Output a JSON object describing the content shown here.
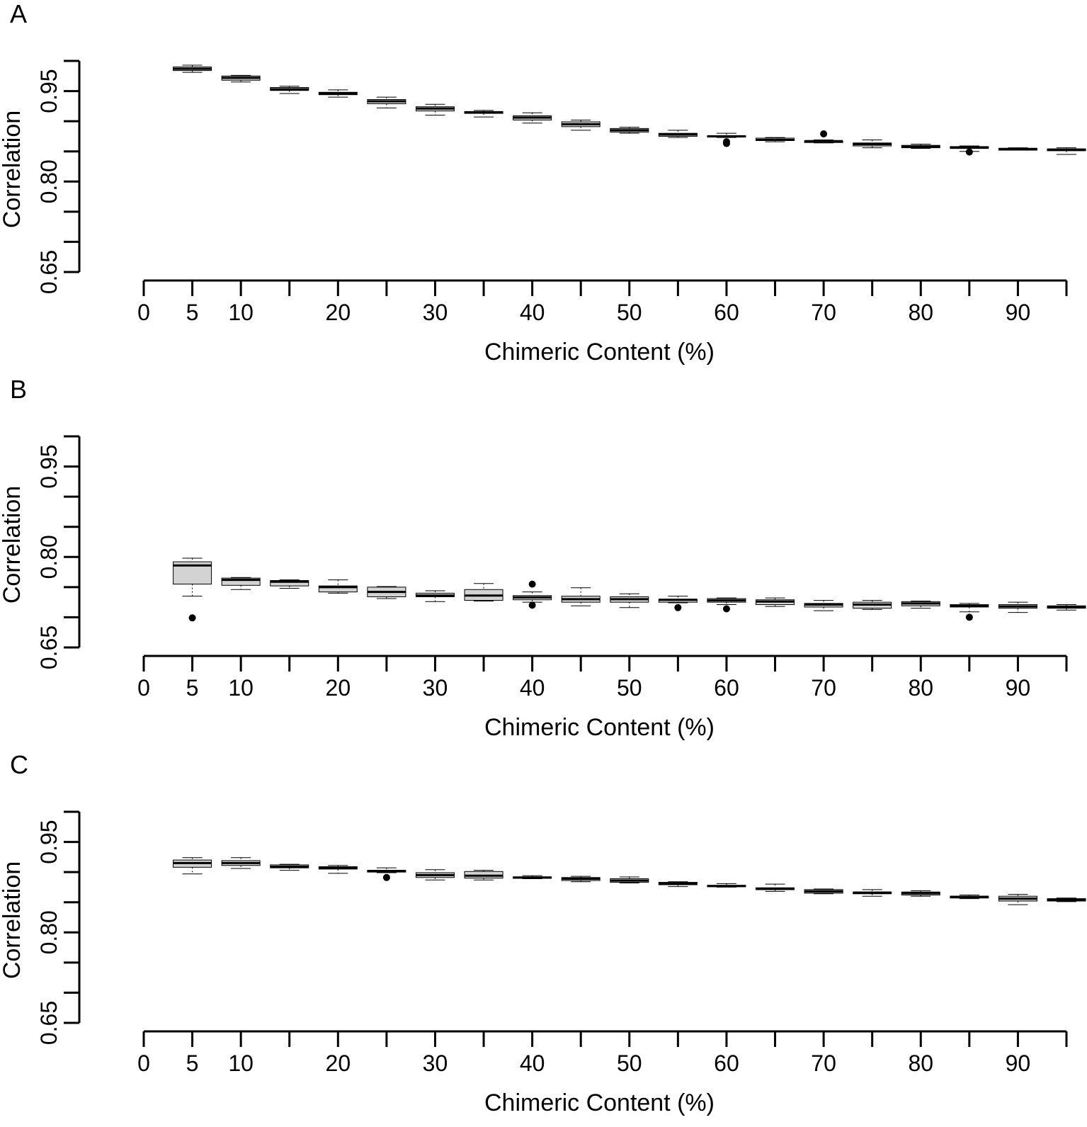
{
  "chart_data": [
    {
      "type": "box",
      "panel_label": "A",
      "xlabel": "Chimeric Content (%)",
      "ylabel": "Correlation",
      "ylim": [
        0.65,
        1.0
      ],
      "xlim": [
        0,
        95
      ],
      "yticks": [
        0.65,
        0.8,
        0.95
      ],
      "yticks_minor": [
        0.7,
        0.75,
        0.85,
        0.9,
        1.0
      ],
      "xticks_labeled": [
        0,
        5,
        10,
        20,
        30,
        40,
        50,
        60,
        70,
        80,
        90
      ],
      "xticks_all": [
        0,
        5,
        10,
        15,
        20,
        25,
        30,
        35,
        40,
        45,
        50,
        55,
        60,
        65,
        70,
        75,
        80,
        85,
        90,
        95
      ],
      "boxes": [
        {
          "x": 5,
          "min": 0.981,
          "q1": 0.984,
          "median": 0.987,
          "q3": 0.99,
          "max": 0.993,
          "outliers": []
        },
        {
          "x": 10,
          "min": 0.965,
          "q1": 0.968,
          "median": 0.972,
          "q3": 0.975,
          "max": 0.976,
          "outliers": []
        },
        {
          "x": 15,
          "min": 0.946,
          "q1": 0.951,
          "median": 0.953,
          "q3": 0.956,
          "max": 0.958,
          "outliers": []
        },
        {
          "x": 20,
          "min": 0.94,
          "q1": 0.944,
          "median": 0.946,
          "q3": 0.948,
          "max": 0.952,
          "outliers": []
        },
        {
          "x": 25,
          "min": 0.922,
          "q1": 0.929,
          "median": 0.933,
          "q3": 0.936,
          "max": 0.94,
          "outliers": []
        },
        {
          "x": 30,
          "min": 0.91,
          "q1": 0.917,
          "median": 0.921,
          "q3": 0.924,
          "max": 0.928,
          "outliers": []
        },
        {
          "x": 35,
          "min": 0.907,
          "q1": 0.913,
          "median": 0.915,
          "q3": 0.916,
          "max": 0.918,
          "outliers": []
        },
        {
          "x": 40,
          "min": 0.897,
          "q1": 0.902,
          "median": 0.906,
          "q3": 0.909,
          "max": 0.914,
          "outliers": []
        },
        {
          "x": 45,
          "min": 0.885,
          "q1": 0.891,
          "median": 0.895,
          "q3": 0.899,
          "max": 0.902,
          "outliers": []
        },
        {
          "x": 50,
          "min": 0.88,
          "q1": 0.882,
          "median": 0.885,
          "q3": 0.888,
          "max": 0.89,
          "outliers": []
        },
        {
          "x": 55,
          "min": 0.873,
          "q1": 0.875,
          "median": 0.878,
          "q3": 0.88,
          "max": 0.885,
          "outliers": []
        },
        {
          "x": 60,
          "min": 0.873,
          "q1": 0.874,
          "median": 0.875,
          "q3": 0.876,
          "max": 0.88,
          "outliers": [
            0.863,
            0.866
          ]
        },
        {
          "x": 65,
          "min": 0.866,
          "q1": 0.868,
          "median": 0.869,
          "q3": 0.872,
          "max": 0.873,
          "outliers": []
        },
        {
          "x": 70,
          "min": 0.864,
          "q1": 0.866,
          "median": 0.867,
          "q3": 0.867,
          "max": 0.869,
          "outliers": [
            0.879
          ]
        },
        {
          "x": 75,
          "min": 0.856,
          "q1": 0.859,
          "median": 0.862,
          "q3": 0.864,
          "max": 0.869,
          "outliers": []
        },
        {
          "x": 80,
          "min": 0.855,
          "q1": 0.856,
          "median": 0.858,
          "q3": 0.86,
          "max": 0.862,
          "outliers": []
        },
        {
          "x": 85,
          "min": 0.85,
          "q1": 0.855,
          "median": 0.856,
          "q3": 0.858,
          "max": 0.859,
          "outliers": [
            0.849
          ]
        },
        {
          "x": 90,
          "min": 0.852,
          "q1": 0.852,
          "median": 0.854,
          "q3": 0.855,
          "max": 0.856,
          "outliers": []
        },
        {
          "x": 95,
          "min": 0.845,
          "q1": 0.851,
          "median": 0.853,
          "q3": 0.854,
          "max": 0.856,
          "outliers": []
        }
      ]
    },
    {
      "type": "box",
      "panel_label": "B",
      "xlabel": "Chimeric Content (%)",
      "ylabel": "Correlation",
      "ylim": [
        0.65,
        1.0
      ],
      "xlim": [
        0,
        95
      ],
      "yticks": [
        0.65,
        0.8,
        0.95
      ],
      "yticks_minor": [
        0.7,
        0.75,
        0.85,
        0.9,
        1.0
      ],
      "xticks_labeled": [
        0,
        5,
        10,
        20,
        30,
        40,
        50,
        60,
        70,
        80,
        90
      ],
      "xticks_all": [
        0,
        5,
        10,
        15,
        20,
        25,
        30,
        35,
        40,
        45,
        50,
        55,
        60,
        65,
        70,
        75,
        80,
        85,
        90,
        95
      ],
      "boxes": [
        {
          "x": 5,
          "min": 0.735,
          "q1": 0.755,
          "median": 0.786,
          "q3": 0.792,
          "max": 0.798,
          "outliers": [
            0.699
          ]
        },
        {
          "x": 10,
          "min": 0.746,
          "q1": 0.753,
          "median": 0.762,
          "q3": 0.765,
          "max": 0.766,
          "outliers": []
        },
        {
          "x": 15,
          "min": 0.748,
          "q1": 0.752,
          "median": 0.759,
          "q3": 0.761,
          "max": 0.762,
          "outliers": []
        },
        {
          "x": 20,
          "min": 0.74,
          "q1": 0.742,
          "median": 0.75,
          "q3": 0.752,
          "max": 0.762,
          "outliers": []
        },
        {
          "x": 25,
          "min": 0.731,
          "q1": 0.734,
          "median": 0.742,
          "q3": 0.75,
          "max": 0.751,
          "outliers": []
        },
        {
          "x": 30,
          "min": 0.726,
          "q1": 0.734,
          "median": 0.736,
          "q3": 0.74,
          "max": 0.744,
          "outliers": []
        },
        {
          "x": 35,
          "min": 0.727,
          "q1": 0.728,
          "median": 0.736,
          "q3": 0.746,
          "max": 0.756,
          "outliers": []
        },
        {
          "x": 40,
          "min": 0.725,
          "q1": 0.729,
          "median": 0.733,
          "q3": 0.736,
          "max": 0.742,
          "outliers": [
            0.72,
            0.755
          ]
        },
        {
          "x": 45,
          "min": 0.719,
          "q1": 0.725,
          "median": 0.73,
          "q3": 0.735,
          "max": 0.749,
          "outliers": []
        },
        {
          "x": 50,
          "min": 0.716,
          "q1": 0.725,
          "median": 0.73,
          "q3": 0.734,
          "max": 0.739,
          "outliers": []
        },
        {
          "x": 55,
          "min": 0.724,
          "q1": 0.725,
          "median": 0.729,
          "q3": 0.73,
          "max": 0.735,
          "outliers": [
            0.716
          ]
        },
        {
          "x": 60,
          "min": 0.721,
          "q1": 0.725,
          "median": 0.728,
          "q3": 0.731,
          "max": 0.732,
          "outliers": [
            0.714
          ]
        },
        {
          "x": 65,
          "min": 0.718,
          "q1": 0.721,
          "median": 0.726,
          "q3": 0.729,
          "max": 0.732,
          "outliers": []
        },
        {
          "x": 70,
          "min": 0.711,
          "q1": 0.717,
          "median": 0.721,
          "q3": 0.723,
          "max": 0.728,
          "outliers": []
        },
        {
          "x": 75,
          "min": 0.713,
          "q1": 0.715,
          "median": 0.721,
          "q3": 0.725,
          "max": 0.728,
          "outliers": []
        },
        {
          "x": 80,
          "min": 0.715,
          "q1": 0.719,
          "median": 0.723,
          "q3": 0.726,
          "max": 0.727,
          "outliers": []
        },
        {
          "x": 85,
          "min": 0.709,
          "q1": 0.717,
          "median": 0.719,
          "q3": 0.721,
          "max": 0.723,
          "outliers": [
            0.7
          ]
        },
        {
          "x": 90,
          "min": 0.708,
          "q1": 0.715,
          "median": 0.718,
          "q3": 0.721,
          "max": 0.725,
          "outliers": []
        },
        {
          "x": 95,
          "min": 0.712,
          "q1": 0.715,
          "median": 0.717,
          "q3": 0.719,
          "max": 0.721,
          "outliers": []
        }
      ]
    },
    {
      "type": "box",
      "panel_label": "C",
      "xlabel": "Chimeric Content (%)",
      "ylabel": "Correlation",
      "ylim": [
        0.65,
        1.0
      ],
      "xlim": [
        0,
        95
      ],
      "yticks": [
        0.65,
        0.8,
        0.95
      ],
      "yticks_minor": [
        0.7,
        0.75,
        0.85,
        0.9,
        1.0
      ],
      "xticks_labeled": [
        0,
        5,
        10,
        20,
        30,
        40,
        50,
        60,
        70,
        80,
        90
      ],
      "xticks_all": [
        0,
        5,
        10,
        15,
        20,
        25,
        30,
        35,
        40,
        45,
        50,
        55,
        60,
        65,
        70,
        75,
        80,
        85,
        90,
        95
      ],
      "boxes": [
        {
          "x": 5,
          "min": 0.897,
          "q1": 0.908,
          "median": 0.915,
          "q3": 0.92,
          "max": 0.924,
          "outliers": []
        },
        {
          "x": 10,
          "min": 0.906,
          "q1": 0.911,
          "median": 0.915,
          "q3": 0.919,
          "max": 0.924,
          "outliers": []
        },
        {
          "x": 15,
          "min": 0.903,
          "q1": 0.907,
          "median": 0.909,
          "q3": 0.912,
          "max": 0.913,
          "outliers": []
        },
        {
          "x": 20,
          "min": 0.898,
          "q1": 0.905,
          "median": 0.907,
          "q3": 0.909,
          "max": 0.911,
          "outliers": []
        },
        {
          "x": 25,
          "min": 0.899,
          "q1": 0.9,
          "median": 0.902,
          "q3": 0.903,
          "max": 0.907,
          "outliers": [
            0.891
          ]
        },
        {
          "x": 30,
          "min": 0.887,
          "q1": 0.891,
          "median": 0.895,
          "q3": 0.899,
          "max": 0.904,
          "outliers": []
        },
        {
          "x": 35,
          "min": 0.887,
          "q1": 0.89,
          "median": 0.894,
          "q3": 0.901,
          "max": 0.903,
          "outliers": []
        },
        {
          "x": 40,
          "min": 0.889,
          "q1": 0.89,
          "median": 0.891,
          "q3": 0.892,
          "max": 0.894,
          "outliers": []
        },
        {
          "x": 45,
          "min": 0.884,
          "q1": 0.886,
          "median": 0.889,
          "q3": 0.891,
          "max": 0.893,
          "outliers": []
        },
        {
          "x": 50,
          "min": 0.882,
          "q1": 0.883,
          "median": 0.886,
          "q3": 0.889,
          "max": 0.892,
          "outliers": []
        },
        {
          "x": 55,
          "min": 0.876,
          "q1": 0.879,
          "median": 0.881,
          "q3": 0.883,
          "max": 0.884,
          "outliers": []
        },
        {
          "x": 60,
          "min": 0.875,
          "q1": 0.876,
          "median": 0.877,
          "q3": 0.878,
          "max": 0.881,
          "outliers": []
        },
        {
          "x": 65,
          "min": 0.868,
          "q1": 0.871,
          "median": 0.872,
          "q3": 0.874,
          "max": 0.88,
          "outliers": []
        },
        {
          "x": 70,
          "min": 0.864,
          "q1": 0.865,
          "median": 0.868,
          "q3": 0.871,
          "max": 0.872,
          "outliers": []
        },
        {
          "x": 75,
          "min": 0.86,
          "q1": 0.864,
          "median": 0.866,
          "q3": 0.867,
          "max": 0.871,
          "outliers": []
        },
        {
          "x": 80,
          "min": 0.86,
          "q1": 0.862,
          "median": 0.865,
          "q3": 0.867,
          "max": 0.869,
          "outliers": []
        },
        {
          "x": 85,
          "min": 0.856,
          "q1": 0.857,
          "median": 0.859,
          "q3": 0.86,
          "max": 0.862,
          "outliers": []
        },
        {
          "x": 90,
          "min": 0.846,
          "q1": 0.852,
          "median": 0.856,
          "q3": 0.86,
          "max": 0.863,
          "outliers": []
        },
        {
          "x": 95,
          "min": 0.851,
          "q1": 0.852,
          "median": 0.854,
          "q3": 0.856,
          "max": 0.857,
          "outliers": []
        }
      ]
    }
  ],
  "colors": {
    "box_fill": "#d3d3d3",
    "stroke": "#000000",
    "background": "#ffffff"
  }
}
